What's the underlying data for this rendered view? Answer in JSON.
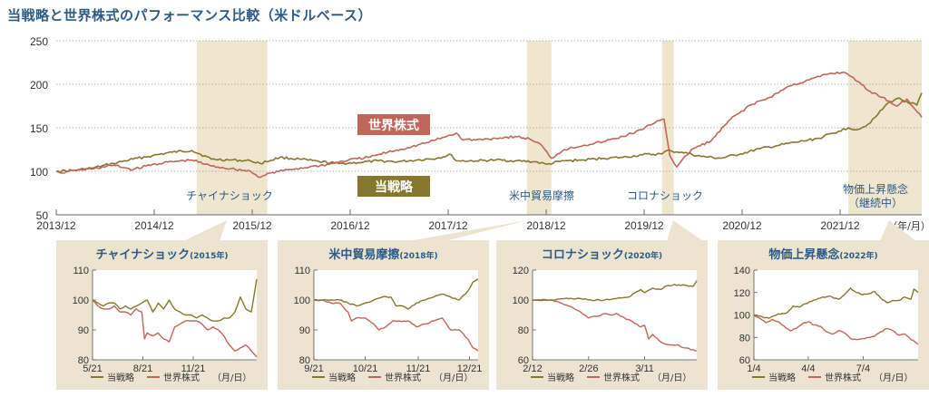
{
  "title": "当戦略と世界株式のパフォーマンス比較（米ドルベース）",
  "colors": {
    "strategy": "#86772e",
    "world": "#c0665a",
    "shade": "#efe6cf",
    "panel_bg": "#ece4d0",
    "title_blue": "#2c5a85",
    "axis": "#555555"
  },
  "chart_data": [
    {
      "type": "line",
      "id": "main",
      "title": "当戦略と世界株式のパフォーマンス比較（米ドルベース）",
      "xlabel": "（年/月）",
      "ylabel": "",
      "ylim": [
        50,
        250
      ],
      "yticks": [
        50,
        100,
        150,
        200,
        250
      ],
      "xlim": [
        2013.917,
        2022.75
      ],
      "x_tick_labels": [
        "2013/12",
        "2014/12",
        "2015/12",
        "2016/12",
        "2017/12",
        "2018/12",
        "2019/12",
        "2020/12",
        "2021/12"
      ],
      "x_tick_values": [
        2013.917,
        2014.917,
        2015.917,
        2016.917,
        2017.917,
        2018.917,
        2019.917,
        2020.917,
        2021.917
      ],
      "grid": "horizontal-dotted",
      "series_labels": {
        "world": "世界株式",
        "strategy": "当戦略"
      },
      "events": [
        {
          "label": "チャイナショック",
          "label2": "",
          "start": 2015.35,
          "end": 2016.07
        },
        {
          "label": "米中貿易摩擦",
          "label2": "",
          "start": 2018.72,
          "end": 2018.97
        },
        {
          "label": "コロナショック",
          "label2": "",
          "start": 2020.1,
          "end": 2020.22
        },
        {
          "label": "物価上昇懸念",
          "label2": "（継続中）",
          "start": 2022.0,
          "end": 2022.75
        }
      ],
      "series": [
        {
          "name": "当戦略",
          "key": "strategy",
          "x": [
            2013.917,
            2014.1,
            2014.3,
            2014.5,
            2014.7,
            2014.9,
            2015.1,
            2015.3,
            2015.5,
            2015.7,
            2015.9,
            2016.0,
            2016.2,
            2016.4,
            2016.6,
            2016.8,
            2017.0,
            2017.2,
            2017.4,
            2017.6,
            2017.8,
            2017.95,
            2018.0,
            2018.2,
            2018.4,
            2018.6,
            2018.8,
            2018.92,
            2019.1,
            2019.3,
            2019.5,
            2019.7,
            2019.9,
            2020.1,
            2020.15,
            2020.2,
            2020.3,
            2020.5,
            2020.7,
            2020.9,
            2021.1,
            2021.3,
            2021.5,
            2021.7,
            2021.9,
            2022.0,
            2022.1,
            2022.2,
            2022.3,
            2022.4,
            2022.5,
            2022.6,
            2022.7,
            2022.75
          ],
          "y": [
            100,
            101,
            104,
            109,
            114,
            118,
            122,
            124,
            114,
            113,
            112,
            109,
            116,
            114,
            111,
            109,
            110,
            112,
            111,
            113,
            115,
            119,
            112,
            112,
            113,
            112,
            111,
            108,
            112,
            113,
            115,
            116,
            119,
            120,
            124,
            123,
            122,
            117,
            115,
            120,
            126,
            130,
            134,
            138,
            146,
            150,
            148,
            154,
            165,
            178,
            184,
            180,
            176,
            190
          ]
        },
        {
          "name": "世界株式",
          "key": "world",
          "x": [
            2013.917,
            2014.0,
            2014.1,
            2014.3,
            2014.5,
            2014.7,
            2014.9,
            2015.1,
            2015.3,
            2015.5,
            2015.7,
            2015.9,
            2016.0,
            2016.1,
            2016.3,
            2016.5,
            2016.7,
            2016.9,
            2017.1,
            2017.3,
            2017.5,
            2017.7,
            2017.9,
            2018.0,
            2018.05,
            2018.2,
            2018.4,
            2018.6,
            2018.75,
            2018.85,
            2018.97,
            2019.1,
            2019.3,
            2019.5,
            2019.7,
            2019.9,
            2020.05,
            2020.12,
            2020.18,
            2020.25,
            2020.4,
            2020.6,
            2020.8,
            2021.0,
            2021.2,
            2021.4,
            2021.6,
            2021.8,
            2021.95,
            2022.05,
            2022.2,
            2022.35,
            2022.5,
            2022.6,
            2022.75
          ],
          "y": [
            100,
            98,
            101,
            103,
            107,
            102,
            108,
            111,
            113,
            106,
            103,
            100,
            93,
            98,
            102,
            105,
            108,
            113,
            116,
            122,
            127,
            133,
            140,
            144,
            137,
            136,
            138,
            140,
            137,
            132,
            115,
            125,
            130,
            134,
            140,
            148,
            158,
            160,
            118,
            105,
            125,
            135,
            160,
            176,
            185,
            198,
            205,
            212,
            214,
            208,
            193,
            185,
            175,
            183,
            162
          ]
        }
      ]
    },
    {
      "type": "line",
      "id": "china",
      "title": "チャイナショック",
      "subtitle": "(2015年)",
      "ylim": [
        80,
        110
      ],
      "yticks": [
        80,
        90,
        100,
        110
      ],
      "x_tick_labels": [
        "5/21",
        "8/21",
        "11/21"
      ],
      "x_tick_values": [
        0,
        92,
        184
      ],
      "xlim": [
        0,
        300
      ],
      "xunit": "（月/日）",
      "series": [
        {
          "name": "当戦略",
          "key": "strategy",
          "x": [
            0,
            10,
            20,
            30,
            40,
            50,
            60,
            70,
            80,
            90,
            100,
            110,
            120,
            130,
            140,
            150,
            160,
            170,
            180,
            190,
            200,
            210,
            220,
            230,
            240,
            250,
            260,
            270,
            280,
            290,
            300
          ],
          "y": [
            100,
            99,
            98,
            99,
            99,
            97,
            98,
            97,
            98,
            99,
            100,
            96,
            99,
            97,
            100,
            97,
            96,
            95,
            95,
            94,
            95,
            94,
            93,
            93,
            94,
            94,
            96,
            101,
            97,
            96,
            107
          ]
        },
        {
          "name": "世界株式",
          "key": "world",
          "x": [
            0,
            10,
            20,
            30,
            40,
            50,
            60,
            70,
            80,
            90,
            95,
            100,
            110,
            120,
            130,
            140,
            150,
            160,
            170,
            180,
            190,
            200,
            210,
            220,
            230,
            240,
            250,
            260,
            270,
            280,
            290,
            300
          ],
          "y": [
            100,
            98,
            97,
            97,
            98,
            96,
            96,
            95,
            97,
            96,
            87,
            89,
            88,
            89,
            87,
            86,
            91,
            92,
            93,
            93,
            93,
            92,
            90,
            91,
            90,
            88,
            85,
            83,
            84,
            85,
            83,
            81
          ]
        }
      ]
    },
    {
      "type": "line",
      "id": "trade",
      "title": "米中貿易摩擦",
      "subtitle": "(2018年)",
      "ylim": [
        80,
        110
      ],
      "yticks": [
        80,
        90,
        100,
        110
      ],
      "x_tick_labels": [
        "9/21",
        "10/21",
        "11/21",
        "12/21"
      ],
      "x_tick_values": [
        0,
        30,
        61,
        91
      ],
      "xlim": [
        0,
        96
      ],
      "xunit": "（月/日）",
      "series": [
        {
          "name": "当戦略",
          "key": "strategy",
          "x": [
            0,
            5,
            10,
            15,
            20,
            25,
            30,
            35,
            40,
            45,
            48,
            52,
            55,
            60,
            65,
            70,
            75,
            80,
            85,
            90,
            93,
            96
          ],
          "y": [
            100,
            100,
            100,
            100,
            99,
            98,
            99,
            100,
            101,
            101,
            98,
            98,
            97,
            99,
            100,
            101,
            102,
            101,
            100,
            103,
            106,
            107
          ]
        },
        {
          "name": "世界株式",
          "key": "world",
          "x": [
            0,
            5,
            10,
            15,
            20,
            22,
            25,
            30,
            35,
            38,
            42,
            46,
            50,
            55,
            60,
            65,
            70,
            75,
            80,
            85,
            90,
            93,
            96
          ],
          "y": [
            100,
            100,
            99,
            99,
            96,
            93,
            94,
            94,
            92,
            90,
            91,
            93,
            93,
            93,
            91,
            92,
            93,
            94,
            90,
            90,
            87,
            84,
            83
          ]
        }
      ]
    },
    {
      "type": "line",
      "id": "corona",
      "title": "コロナショック",
      "subtitle": "(2020年)",
      "ylim": [
        60,
        120
      ],
      "yticks": [
        60,
        80,
        100,
        120
      ],
      "x_tick_labels": [
        "2/12",
        "2/26",
        "3/11"
      ],
      "x_tick_values": [
        0,
        14,
        28
      ],
      "xlim": [
        0,
        41
      ],
      "xunit": "（月/日）",
      "series": [
        {
          "name": "当戦略",
          "key": "strategy",
          "x": [
            0,
            5,
            8,
            12,
            14,
            18,
            21,
            24,
            27,
            28,
            30,
            32,
            33,
            35,
            38,
            40,
            41
          ],
          "y": [
            100,
            100,
            101,
            101,
            100,
            100,
            101,
            102,
            107,
            105,
            108,
            107,
            109,
            110,
            110,
            109,
            113
          ]
        },
        {
          "name": "世界株式",
          "key": "world",
          "x": [
            0,
            5,
            7,
            10,
            12,
            14,
            16,
            18,
            20,
            21,
            23,
            26,
            27,
            28,
            29,
            30,
            32,
            34,
            36,
            38,
            41
          ],
          "y": [
            100,
            100,
            98,
            95,
            92,
            88,
            89,
            91,
            90,
            91,
            88,
            84,
            82,
            83,
            74,
            77,
            72,
            70,
            70,
            68,
            66
          ]
        }
      ]
    },
    {
      "type": "line",
      "id": "inflation",
      "title": "物価上昇懸念",
      "subtitle": "(2022年)",
      "ylim": [
        60,
        140
      ],
      "yticks": [
        60,
        80,
        100,
        120,
        140
      ],
      "x_tick_labels": [
        "1/4",
        "4/4",
        "7/4"
      ],
      "x_tick_values": [
        0,
        90,
        181
      ],
      "xlim": [
        0,
        272
      ],
      "xunit": "（月/日）",
      "series": [
        {
          "name": "当戦略",
          "key": "strategy",
          "x": [
            0,
            15,
            25,
            40,
            55,
            65,
            75,
            85,
            95,
            110,
            125,
            140,
            150,
            160,
            170,
            180,
            190,
            200,
            210,
            220,
            230,
            240,
            250,
            260,
            265,
            272
          ],
          "y": [
            100,
            98,
            97,
            101,
            102,
            108,
            107,
            110,
            112,
            115,
            117,
            114,
            118,
            124,
            120,
            118,
            119,
            121,
            115,
            111,
            113,
            113,
            116,
            114,
            123,
            120
          ]
        },
        {
          "name": "世界株式",
          "key": "world",
          "x": [
            0,
            10,
            20,
            30,
            40,
            50,
            60,
            70,
            80,
            90,
            100,
            110,
            120,
            130,
            140,
            150,
            160,
            170,
            180,
            190,
            200,
            210,
            220,
            230,
            240,
            250,
            260,
            272
          ],
          "y": [
            100,
            97,
            93,
            96,
            94,
            90,
            86,
            88,
            92,
            94,
            91,
            90,
            85,
            83,
            86,
            84,
            79,
            78,
            79,
            80,
            81,
            85,
            88,
            86,
            82,
            83,
            78,
            74
          ]
        }
      ]
    }
  ]
}
